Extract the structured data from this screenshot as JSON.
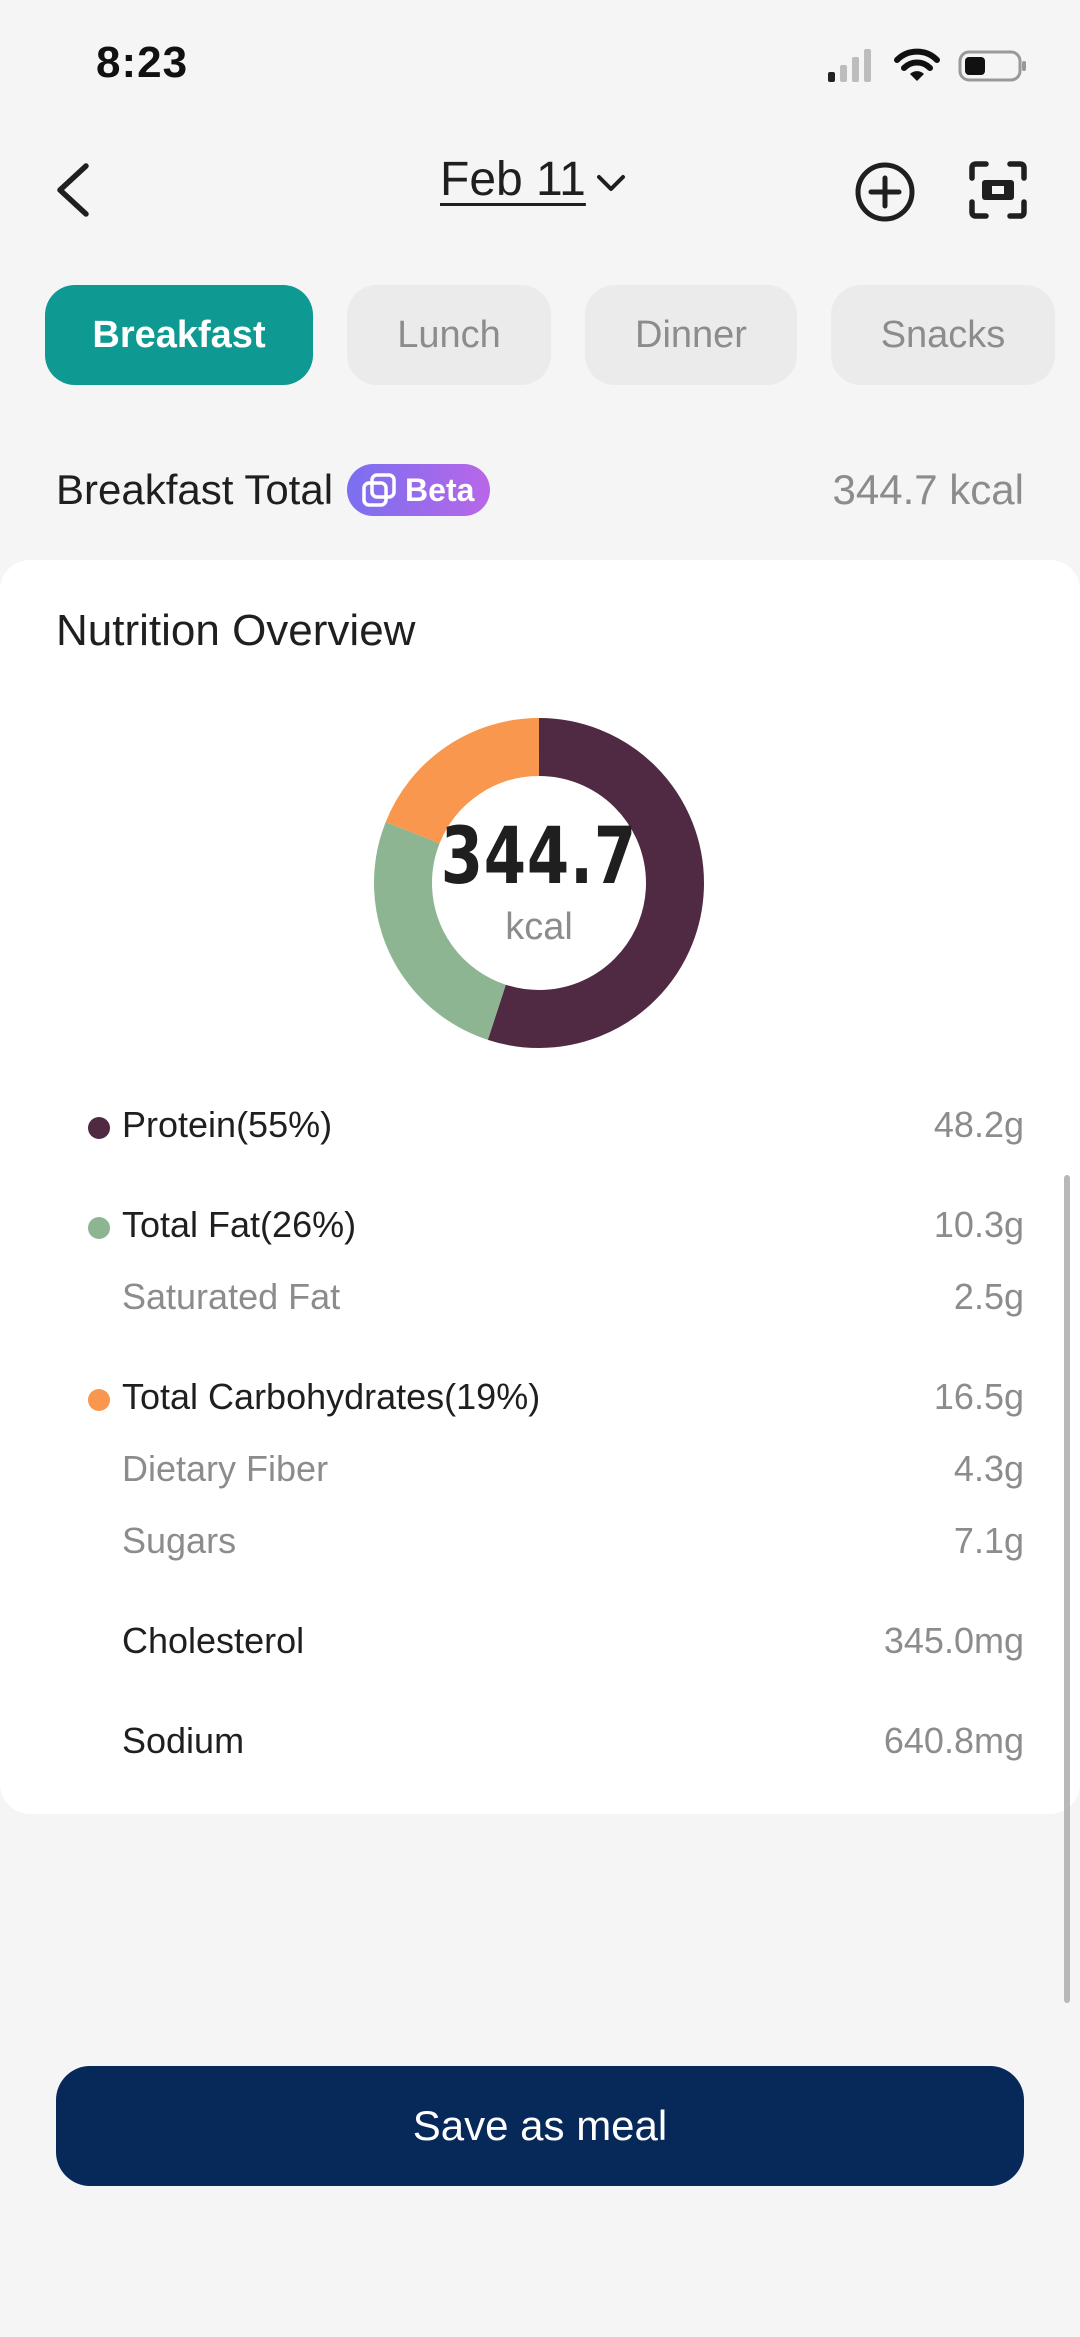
{
  "status_bar": {
    "time": "8:23"
  },
  "header": {
    "date": "Feb 11"
  },
  "tabs": [
    {
      "label": "Breakfast",
      "active": true
    },
    {
      "label": "Lunch",
      "active": false
    },
    {
      "label": "Dinner",
      "active": false
    },
    {
      "label": "Snacks",
      "active": false
    }
  ],
  "meal_total": {
    "label": "Breakfast Total",
    "badge": "Beta",
    "kcal": "344.7 kcal"
  },
  "overview": {
    "title": "Nutrition Overview",
    "center_value": "344.7",
    "center_unit": "kcal",
    "ring": [
      {
        "name": "Protein",
        "percent": 55,
        "color": "#4f2a42"
      },
      {
        "name": "Total Fat",
        "percent": 26,
        "color": "#8db592"
      },
      {
        "name": "Total Carbohydrates",
        "percent": 19,
        "color": "#f9974f"
      }
    ],
    "nutrients": [
      {
        "label": "Protein(55%)",
        "value": "48.2g",
        "dot_color": "#4f2a42"
      },
      {
        "label": "Total Fat(26%)",
        "value": "10.3g",
        "dot_color": "#8db592"
      },
      {
        "label": "Saturated Fat",
        "value": "2.5g"
      },
      {
        "label": "Total Carbohydrates(19%)",
        "value": "16.5g",
        "dot_color": "#f9974f"
      },
      {
        "label": "Dietary Fiber",
        "value": "4.3g"
      },
      {
        "label": "Sugars",
        "value": "7.1g"
      },
      {
        "label": "Cholesterol",
        "value": "345.0mg"
      },
      {
        "label": "Sodium",
        "value": "640.8mg"
      }
    ]
  },
  "actions": {
    "save_label": "Save as meal"
  },
  "colors": {
    "accent": "#0e9a92",
    "primary_button": "#06295a",
    "beta_gradient_start": "#7a6ff0",
    "beta_gradient_end": "#b867e8"
  }
}
